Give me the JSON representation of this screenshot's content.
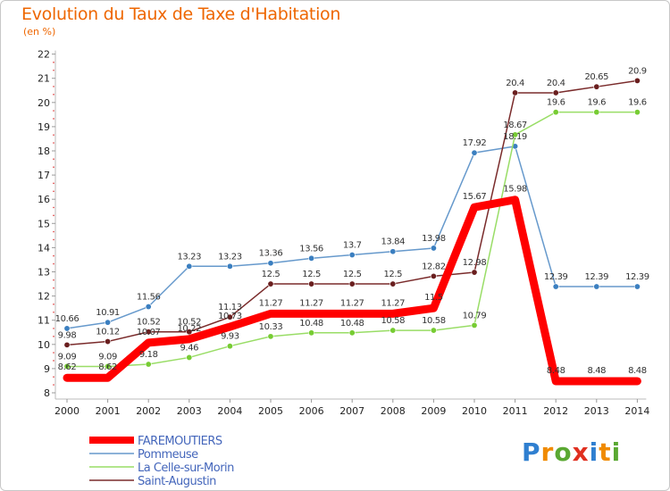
{
  "title": "Evolution du Taux de Taxe d'Habitation",
  "subtitle": "(en %)",
  "logo": {
    "letters": [
      "P",
      "r",
      "o",
      "x",
      "i",
      "t",
      "i"
    ],
    "colors": [
      "#2f7fd0",
      "#f08a00",
      "#5aa832",
      "#e03020",
      "#2f7fd0",
      "#f08a00",
      "#5aa832"
    ]
  },
  "chart_data": {
    "type": "line",
    "x": [
      "2000",
      "2001",
      "2002",
      "2003",
      "2004",
      "2005",
      "2006",
      "2007",
      "2008",
      "2009",
      "2010",
      "2011",
      "2012",
      "2013",
      "2014"
    ],
    "y_ticks": [
      "8",
      "9",
      "10",
      "11",
      "12",
      "13",
      "14",
      "15",
      "16",
      "17",
      "18",
      "19",
      "20",
      "21",
      "22"
    ],
    "ylim": [
      8,
      22
    ],
    "grid": false,
    "legend_position": "bottom-left",
    "series": [
      {
        "name": "FAREMOUTIERS",
        "color": "#ff0000",
        "style": "thick",
        "values": [
          8.62,
          8.62,
          10.07,
          10.22,
          10.73,
          11.27,
          11.27,
          11.27,
          11.27,
          11.5,
          15.67,
          15.98,
          8.48,
          8.48,
          8.48
        ],
        "labels": [
          "8.62",
          "8.62",
          "10.07",
          "10.22",
          "10.73",
          "11.27",
          "11.27",
          "11.27",
          "11.27",
          "11.5",
          "15.67",
          "15.98",
          "8.48",
          "8.48",
          "8.48"
        ]
      },
      {
        "name": "Pommeuse",
        "color": "#6699cc",
        "marker": "#3b7fc0",
        "style": "thin",
        "values": [
          10.66,
          10.91,
          11.56,
          13.23,
          13.23,
          13.36,
          13.56,
          13.7,
          13.84,
          13.98,
          17.92,
          18.19,
          12.39,
          12.39,
          12.39
        ],
        "labels": [
          "10.66",
          "10.91",
          "11.56",
          "13.23",
          "13.23",
          "13.36",
          "13.56",
          "13.7",
          "13.84",
          "13.98",
          "17.92",
          "18.19",
          "12.39",
          "12.39",
          "12.39"
        ]
      },
      {
        "name": "La Celle-sur-Morin",
        "color": "#99dd66",
        "marker": "#77cc33",
        "style": "thin",
        "values": [
          9.09,
          9.09,
          9.18,
          9.46,
          9.93,
          10.33,
          10.48,
          10.48,
          10.58,
          10.58,
          10.79,
          18.67,
          19.6,
          19.6,
          19.6
        ],
        "labels": [
          "9.09",
          "9.09",
          "9.18",
          "9.46",
          "9.93",
          "10.33",
          "10.48",
          "10.48",
          "10.58",
          "10.58",
          "10.79",
          "18.67",
          "19.6",
          "19.6",
          "19.6"
        ]
      },
      {
        "name": "Saint-Augustin",
        "color": "#7a2b2b",
        "marker": "#6a1f1f",
        "style": "thin",
        "values": [
          9.98,
          10.12,
          10.52,
          10.52,
          11.13,
          12.5,
          12.5,
          12.5,
          12.5,
          12.82,
          12.98,
          20.4,
          20.4,
          20.65,
          20.9
        ],
        "labels": [
          "9.98",
          "10.12",
          "10.52",
          "10.52",
          "11.13",
          "12.5",
          "12.5",
          "12.5",
          "12.5",
          "12.82",
          "12.98",
          "20.4",
          "20.4",
          "20.65",
          "20.9"
        ]
      }
    ]
  }
}
